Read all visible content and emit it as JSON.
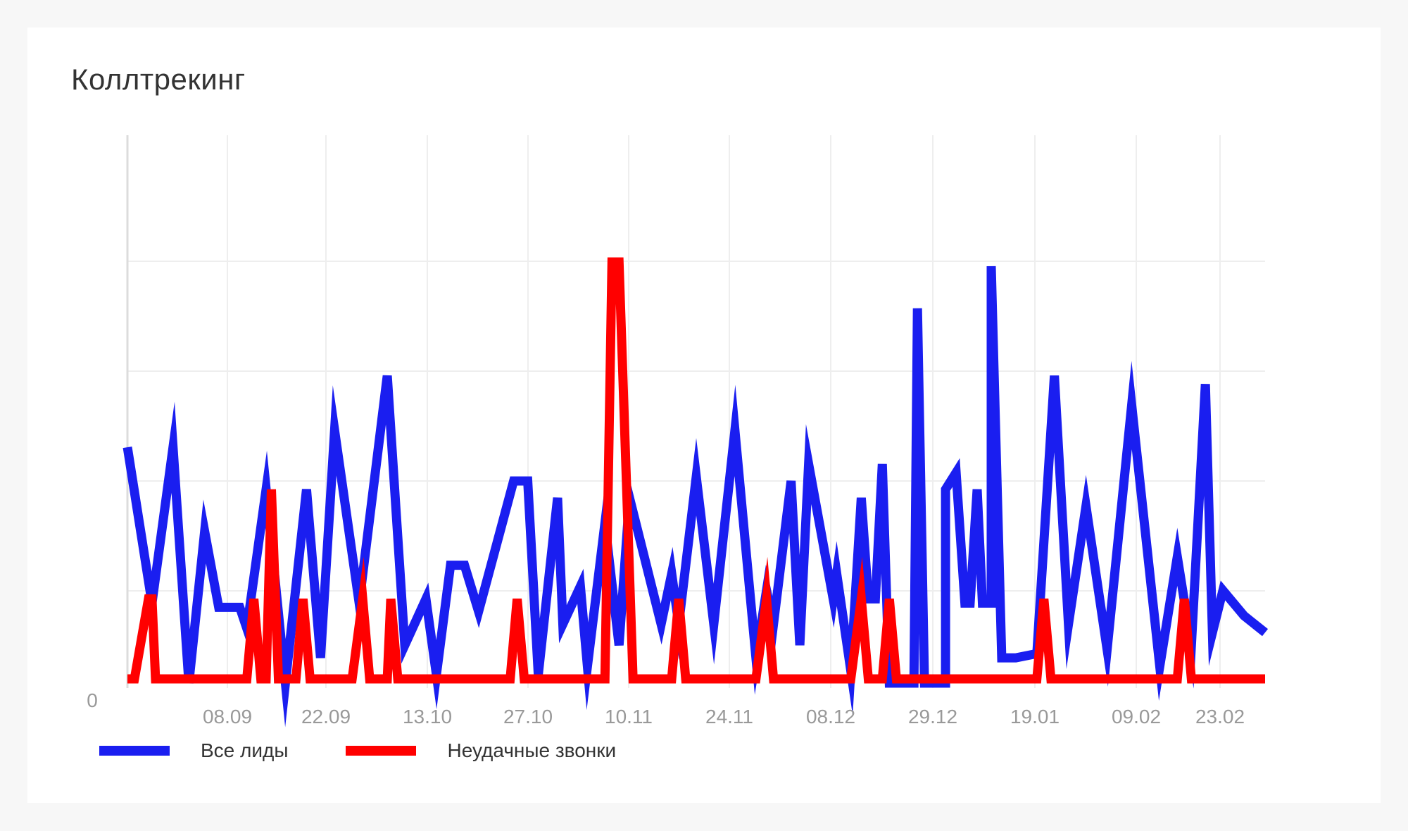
{
  "card": {
    "title": "Коллтрекинг"
  },
  "chart_data": {
    "type": "line",
    "title": "Коллтрекинг",
    "xlabel": "",
    "ylabel": "",
    "ylim": [
      0,
      10
    ],
    "y_tick_labels": [
      "0"
    ],
    "x_tick_labels": [
      "08.09",
      "22.09",
      "13.10",
      "27.10",
      "10.11",
      "24.11",
      "08.12",
      "29.12",
      "19.01",
      "09.02",
      "23.02"
    ],
    "grid": true,
    "legend_position": "bottom-left",
    "series": [
      {
        "name": "Все лиды",
        "color": "#1a1ef0",
        "points": [
          [
            0.0,
            5.6
          ],
          [
            2.8,
            1.9
          ],
          [
            5.2,
            5.6
          ],
          [
            7.0,
            0.0
          ],
          [
            8.8,
            3.6
          ],
          [
            10.4,
            1.8
          ],
          [
            12.8,
            1.8
          ],
          [
            13.6,
            1.3
          ],
          [
            15.8,
            4.6
          ],
          [
            18.0,
            0.0
          ],
          [
            20.4,
            4.6
          ],
          [
            22.0,
            0.6
          ],
          [
            23.6,
            6.0
          ],
          [
            26.4,
            1.9
          ],
          [
            29.6,
            7.3
          ],
          [
            31.6,
            0.9
          ],
          [
            34.0,
            2.0
          ],
          [
            35.2,
            0.2
          ],
          [
            36.8,
            2.8
          ],
          [
            38.4,
            2.8
          ],
          [
            40.0,
            1.7
          ],
          [
            44.0,
            4.8
          ],
          [
            45.6,
            4.8
          ],
          [
            46.8,
            0.2
          ],
          [
            49.0,
            4.4
          ],
          [
            49.6,
            1.4
          ],
          [
            51.6,
            2.3
          ],
          [
            52.4,
            0.4
          ],
          [
            54.4,
            3.8
          ],
          [
            56.0,
            0.9
          ],
          [
            57.2,
            4.4
          ],
          [
            60.8,
            1.4
          ],
          [
            62.0,
            2.6
          ],
          [
            62.8,
            1.4
          ],
          [
            64.8,
            4.9
          ],
          [
            66.8,
            1.4
          ],
          [
            69.2,
            6.0
          ],
          [
            71.6,
            0.6
          ],
          [
            72.8,
            2.2
          ],
          [
            73.6,
            1.4
          ],
          [
            75.6,
            4.8
          ],
          [
            76.6,
            0.9
          ],
          [
            77.6,
            5.2
          ],
          [
            80.4,
            2.0
          ],
          [
            80.8,
            2.6
          ],
          [
            82.4,
            0.3
          ],
          [
            83.6,
            4.4
          ],
          [
            84.4,
            2.0
          ],
          [
            85.2,
            2.0
          ],
          [
            86.0,
            5.2
          ],
          [
            86.8,
            0.0
          ],
          [
            87.8,
            0.0
          ],
          [
            89.6,
            0.0
          ],
          [
            90.0,
            8.9
          ],
          [
            90.8,
            0.0
          ],
          [
            93.2,
            0.0
          ],
          [
            93.2,
            4.6
          ],
          [
            94.4,
            5.0
          ],
          [
            95.4,
            1.9
          ],
          [
            96.0,
            1.9
          ],
          [
            96.8,
            4.6
          ],
          [
            97.4,
            1.9
          ],
          [
            98.4,
            1.9
          ],
          [
            98.4,
            9.9
          ],
          [
            99.6,
            0.6
          ],
          [
            100.4,
            0.6
          ],
          [
            101.2,
            0.6
          ],
          [
            103.6,
            0.7
          ],
          [
            105.6,
            7.3
          ],
          [
            107.2,
            1.4
          ],
          [
            109.2,
            4.2
          ],
          [
            111.6,
            0.8
          ],
          [
            114.4,
            6.6
          ],
          [
            117.6,
            0.4
          ],
          [
            119.6,
            3.0
          ],
          [
            121.2,
            0.9
          ],
          [
            122.8,
            7.1
          ],
          [
            123.6,
            1.2
          ],
          [
            124.8,
            2.2
          ],
          [
            127.2,
            1.6
          ],
          [
            129.6,
            1.2
          ]
        ]
      },
      {
        "name": "Неудачные звонки",
        "color": "#ff0000",
        "points": [
          [
            0.0,
            0.1
          ],
          [
            0.8,
            0.1
          ],
          [
            2.4,
            2.0
          ],
          [
            2.8,
            2.0
          ],
          [
            3.2,
            0.1
          ],
          [
            12.8,
            0.1
          ],
          [
            13.6,
            0.1
          ],
          [
            14.4,
            2.0
          ],
          [
            15.2,
            0.1
          ],
          [
            15.8,
            0.1
          ],
          [
            16.4,
            4.6
          ],
          [
            17.2,
            0.1
          ],
          [
            19.2,
            0.1
          ],
          [
            20.0,
            2.0
          ],
          [
            20.8,
            0.1
          ],
          [
            22.4,
            0.1
          ],
          [
            25.6,
            0.1
          ],
          [
            26.8,
            2.0
          ],
          [
            27.6,
            0.1
          ],
          [
            29.6,
            0.1
          ],
          [
            30.0,
            2.0
          ],
          [
            30.8,
            0.1
          ],
          [
            41.2,
            0.1
          ],
          [
            42.0,
            0.1
          ],
          [
            43.6,
            0.1
          ],
          [
            44.4,
            2.0
          ],
          [
            45.2,
            0.1
          ],
          [
            49.6,
            0.1
          ],
          [
            51.2,
            0.1
          ],
          [
            52.4,
            0.1
          ],
          [
            54.4,
            0.1
          ],
          [
            55.2,
            10.0
          ],
          [
            56.0,
            10.0
          ],
          [
            57.6,
            0.1
          ],
          [
            62.0,
            0.1
          ],
          [
            62.8,
            2.0
          ],
          [
            63.6,
            0.1
          ],
          [
            71.6,
            0.1
          ],
          [
            72.8,
            2.0
          ],
          [
            73.6,
            0.1
          ],
          [
            80.4,
            0.1
          ],
          [
            82.4,
            0.1
          ],
          [
            83.6,
            2.0
          ],
          [
            84.4,
            0.1
          ],
          [
            86.0,
            0.1
          ],
          [
            86.8,
            2.0
          ],
          [
            87.6,
            0.1
          ],
          [
            89.6,
            0.1
          ],
          [
            96.8,
            0.1
          ],
          [
            98.4,
            0.1
          ],
          [
            101.2,
            0.1
          ],
          [
            103.6,
            0.1
          ],
          [
            104.4,
            2.0
          ],
          [
            105.2,
            0.1
          ],
          [
            118.8,
            0.1
          ],
          [
            119.6,
            0.1
          ],
          [
            120.4,
            2.0
          ],
          [
            121.2,
            0.1
          ],
          [
            129.6,
            0.1
          ]
        ]
      }
    ]
  },
  "legend": {
    "items": [
      {
        "label": "Все лиды",
        "color": "#1a1ef0"
      },
      {
        "label": "Неудачные звонки",
        "color": "#ff0000"
      }
    ]
  }
}
